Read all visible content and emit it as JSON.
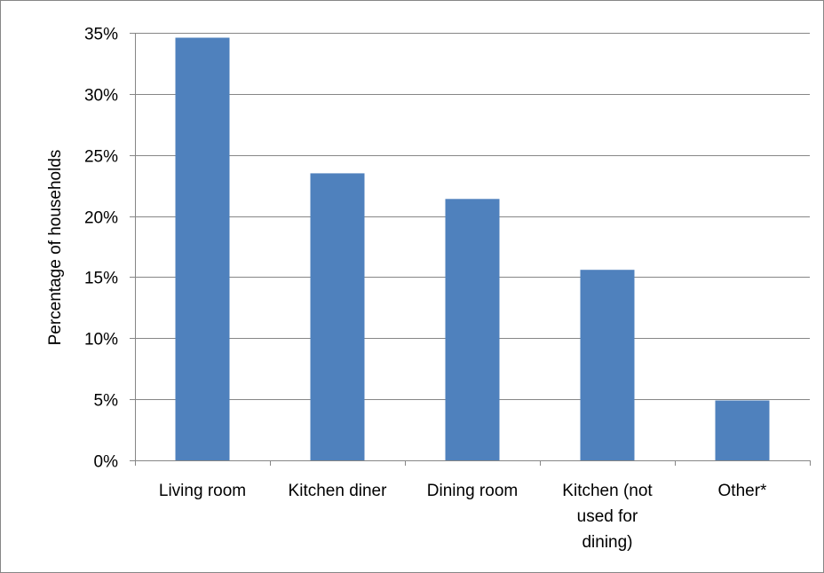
{
  "chart_data": {
    "type": "bar",
    "title": "",
    "xlabel": "",
    "ylabel": "Percentage of households",
    "categories": [
      "Living room",
      "Kitchen diner",
      "Dining room",
      "Kitchen (not used for dining)",
      "Other*"
    ],
    "category_lines": [
      [
        "Living room"
      ],
      [
        "Kitchen diner"
      ],
      [
        "Dining room"
      ],
      [
        "Kitchen (not",
        "used for",
        "dining)"
      ],
      [
        "Other*"
      ]
    ],
    "values": [
      34.6,
      23.5,
      21.4,
      15.6,
      4.9
    ],
    "value_unit": "%",
    "ylim": [
      0,
      35
    ],
    "yticks": [
      0,
      5,
      10,
      15,
      20,
      25,
      30,
      35
    ],
    "ytick_labels": [
      "0%",
      "5%",
      "10%",
      "15%",
      "20%",
      "25%",
      "30%",
      "35%"
    ],
    "grid": true,
    "legend": "none",
    "bar_color": "#4f81bd",
    "grid_color": "#868686"
  }
}
